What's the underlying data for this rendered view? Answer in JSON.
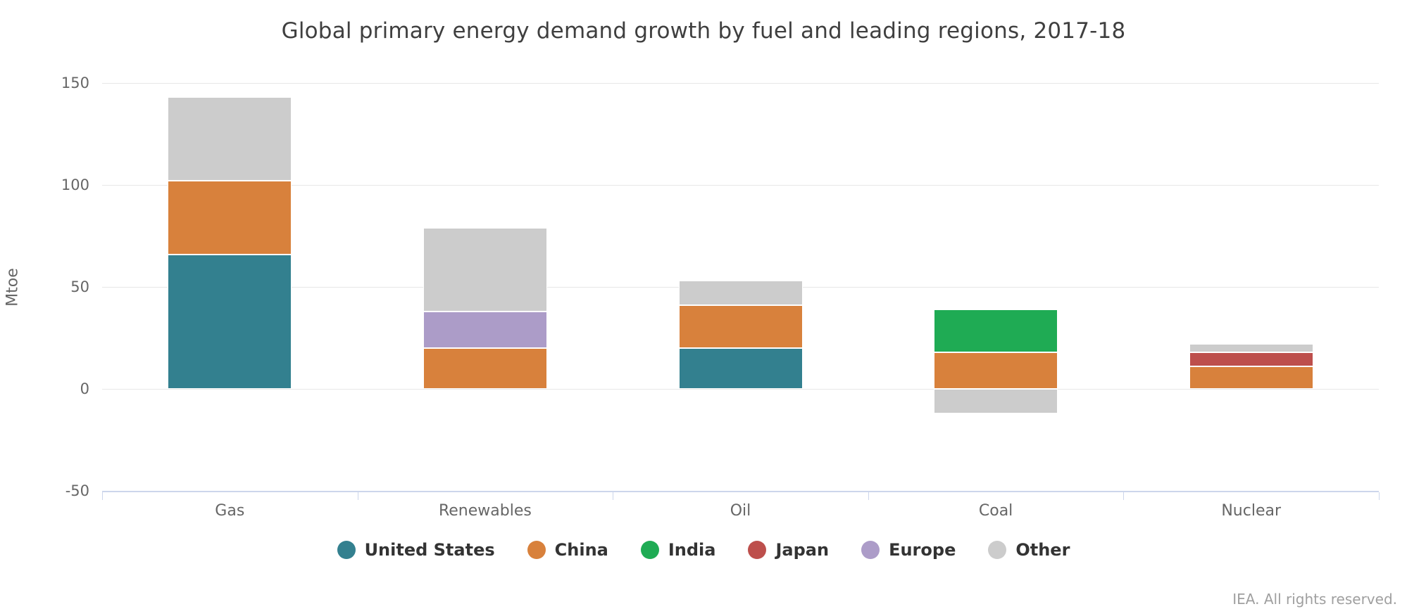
{
  "page": {
    "background": "#ffffff",
    "footer": "IEA. All rights reserved."
  },
  "chart_data": {
    "type": "bar",
    "stacked": true,
    "title": "Global primary energy demand growth by fuel and leading regions, 2017-18",
    "xlabel": "",
    "ylabel": "Mtoe",
    "ylim": [
      -50,
      150
    ],
    "yticks": [
      150,
      100,
      50,
      0,
      -50
    ],
    "grid": true,
    "legend_position": "bottom",
    "categories": [
      "Gas",
      "Renewables",
      "Oil",
      "Coal",
      "Nuclear"
    ],
    "series": [
      {
        "name": "United States",
        "color": "#33808f",
        "values": [
          66,
          0,
          20,
          0,
          0
        ]
      },
      {
        "name": "China",
        "color": "#d8813c",
        "values": [
          36,
          20,
          21,
          18,
          11
        ]
      },
      {
        "name": "India",
        "color": "#1fab54",
        "values": [
          0,
          0,
          0,
          21,
          0
        ]
      },
      {
        "name": "Japan",
        "color": "#bd4f4c",
        "values": [
          0,
          0,
          0,
          0,
          7
        ]
      },
      {
        "name": "Europe",
        "color": "#ac9cc8",
        "values": [
          0,
          18,
          0,
          0,
          0
        ]
      },
      {
        "name": "Other",
        "color": "#cccccc",
        "values": [
          41,
          41,
          12,
          -12,
          4
        ]
      }
    ]
  }
}
